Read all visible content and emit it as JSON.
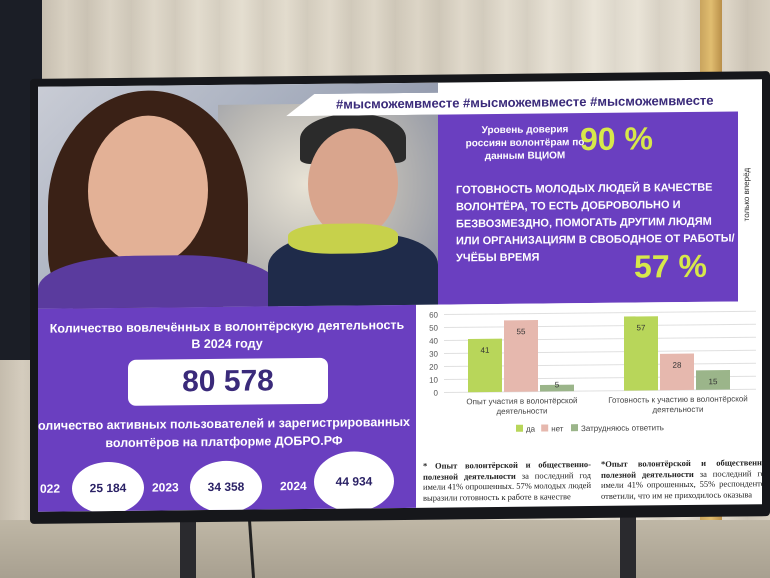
{
  "hashtags": "#мысможемвместе #мысможемвместе #мысможемвместе",
  "side_label": "только вперёд",
  "trust": {
    "label": "Уровень доверия россиян волонтёрам по данным ВЦИОМ",
    "value": "90 %"
  },
  "readiness": {
    "label": "ГОТОВНОСТЬ МОЛОДЫХ ЛЮДЕЙ В КАЧЕСТВЕ ВОЛОНТЁРА, ТО ЕСТЬ ДОБРОВОЛЬНО И БЕЗВОЗМЕЗДНО, ПОМОГАТЬ ДРУГИМ ЛЮДЯМ ИЛИ ОРГАНИЗАЦИЯМ В СВОБОДНОЕ ОТ РАБОТЫ/УЧЁБЫ ВРЕМЯ",
    "value": "57 %"
  },
  "involved": {
    "label_line1": "Количество вовлечённых в волонтёрскую деятельность",
    "label_line2": "В 2024 году",
    "value": "80 578"
  },
  "active_users": {
    "label_line1": "оличество активных пользователей и зарегистрированных",
    "label_line2": "волонтёров на платформе ДОБРО.РФ",
    "years": [
      {
        "year": "022",
        "value": "25 184"
      },
      {
        "year": "2023",
        "value": "34 358"
      },
      {
        "year": "2024",
        "value": "44 934"
      }
    ]
  },
  "chart_data": {
    "type": "bar",
    "categories": [
      "Опыт участия в волонтёрской деятельности",
      "Готовность к участию в волонтёрской деятельности"
    ],
    "series": [
      {
        "name": "да",
        "values": [
          41,
          57
        ],
        "color": "#b8d65a"
      },
      {
        "name": "нет",
        "values": [
          55,
          28
        ],
        "color": "#e6b8ae"
      },
      {
        "name": "Затрудняюсь ответить",
        "values": [
          5,
          15
        ],
        "color": "#9bb58a"
      }
    ],
    "yticks": [
      "0",
      "10",
      "20",
      "30",
      "40",
      "50",
      "60"
    ],
    "ylim": [
      0,
      60
    ],
    "grid": true,
    "legend_position": "bottom"
  },
  "footnotes": [
    {
      "bold": "* Опыт волонтёрской и общественно-полезной деятельности",
      "text": " за последний год имели 41% опрошенных. 57% молодых людей выразили готовность к работе в качестве"
    },
    {
      "bold": "*Опыт волонтёрской и общественно-полезной деятельности",
      "text": " за последний год имели 41% опрошенных, 55% респондентов ответили, что им не приходилось оказыва"
    }
  ]
}
